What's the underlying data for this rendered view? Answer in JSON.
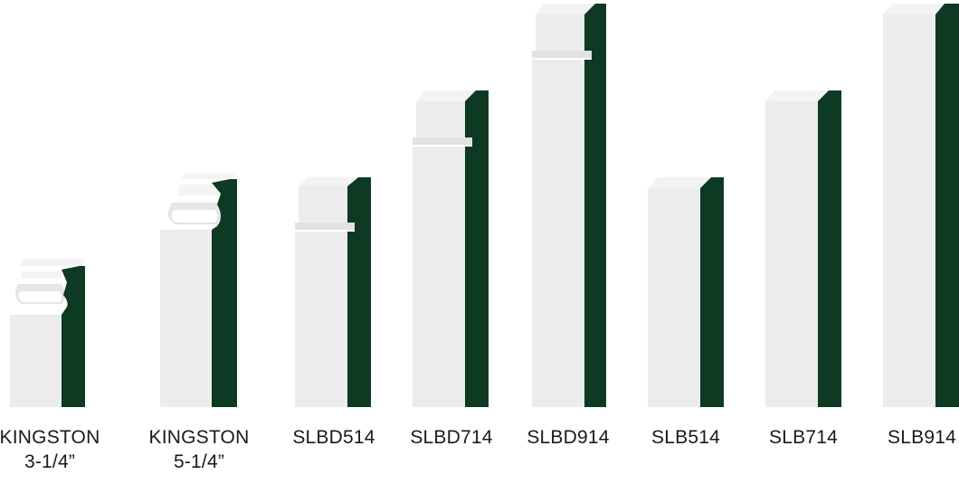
{
  "colors": {
    "face": "#ececec",
    "face_light": "#f6f6f6",
    "edge": "#0e3a23",
    "top": "#f3f3f3",
    "text": "#1a1a1a"
  },
  "profiles": [
    {
      "id": "kingston-3-1-4",
      "line1": "KINGSTON",
      "line2": "3-1/4”"
    },
    {
      "id": "kingston-5-1-4",
      "line1": "KINGSTON",
      "line2": "5-1/4”"
    },
    {
      "id": "slbd514",
      "line1": "SLBD514",
      "line2": ""
    },
    {
      "id": "slbd714",
      "line1": "SLBD714",
      "line2": ""
    },
    {
      "id": "slbd914",
      "line1": "SLBD914",
      "line2": ""
    },
    {
      "id": "slb514",
      "line1": "SLB514",
      "line2": ""
    },
    {
      "id": "slb714",
      "line1": "SLB714",
      "line2": ""
    },
    {
      "id": "slb914",
      "line1": "SLB914",
      "line2": ""
    }
  ]
}
